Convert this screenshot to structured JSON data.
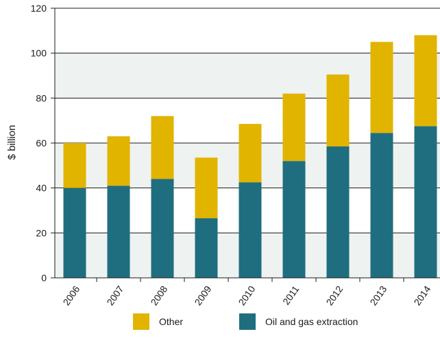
{
  "chart_data": {
    "type": "bar",
    "stacked": true,
    "categories": [
      "2006",
      "2007",
      "2008",
      "2009",
      "2010",
      "2011",
      "2012",
      "2013",
      "2014"
    ],
    "series": [
      {
        "name": "Oil and gas extraction",
        "color": "#1f6e7f",
        "values": [
          40,
          41,
          44,
          26.5,
          42.5,
          52,
          58.5,
          64.5,
          67.5
        ]
      },
      {
        "name": "Other",
        "color": "#e1b400",
        "values": [
          20,
          22,
          28,
          27,
          26,
          30,
          32,
          40.5,
          40.5
        ]
      }
    ],
    "title": "",
    "xlabel": "",
    "ylabel": "$ billion",
    "ylim": [
      0,
      120
    ],
    "yticks": [
      "0",
      "20",
      "40",
      "60",
      "80",
      "100",
      "120"
    ],
    "grid": true,
    "band_color": "#eef2f1",
    "legend_position": "bottom"
  },
  "legend": {
    "items": [
      {
        "label": "Other",
        "color": "#e1b400"
      },
      {
        "label": "Oil and gas extraction",
        "color": "#1f6e7f"
      }
    ]
  }
}
